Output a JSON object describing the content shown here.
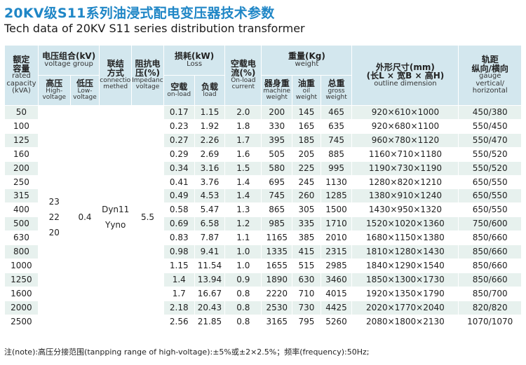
{
  "title": {
    "cn": "20KV级S11系列油浸式配电变压器技术参数",
    "en": "Tech data of 20KV S11 series distribution transformer"
  },
  "headers": {
    "capacity": {
      "cn1": "额定",
      "cn2": "容量",
      "en1": "rated",
      "en2": "capacity",
      "en3": "(kVA)"
    },
    "voltage_group": {
      "cn": "电压组合(kV)",
      "en": "voltage group"
    },
    "high_voltage": {
      "cn": "高压",
      "en1": "High-",
      "en2": "voltage"
    },
    "low_voltage": {
      "cn": "低压",
      "en1": "Low-",
      "en2": "voltage"
    },
    "connection": {
      "cn1": "联结",
      "cn2": "方式",
      "en1": "connection",
      "en2": "methed"
    },
    "impedance": {
      "cn1": "阻抗电",
      "cn2": "压(%)",
      "en1": "Impedance",
      "en2": "voltage"
    },
    "loss": {
      "cn": "损耗(kW)",
      "en": "Loss"
    },
    "no_load_loss": {
      "cn": "空载",
      "en": "on-load"
    },
    "load_loss": {
      "cn": "负载",
      "en": "load"
    },
    "no_load_current": {
      "cn1": "空载电",
      "cn2": "流(%)",
      "en1": "On-load",
      "en2": "current"
    },
    "weight": {
      "cn": "重量(Kg)",
      "en": "weight"
    },
    "machine_weight": {
      "cn": "器身重",
      "en1": "machine",
      "en2": "weight"
    },
    "oil_weight": {
      "cn": "油重",
      "en1": "oil",
      "en2": "weight"
    },
    "gross_weight": {
      "cn": "总重",
      "en1": "gross",
      "en2": "weight"
    },
    "dimension": {
      "cn1": "外形尺寸(mm)",
      "cn2": "(长L × 宽B × 高H)",
      "en": "outline dimension"
    },
    "gauge": {
      "cn1": "轨距",
      "cn2": "纵向/横向",
      "en1": "gauge",
      "en2": "vertical/",
      "en3": "horizontal"
    }
  },
  "merged": {
    "high_voltage": [
      "23",
      "22",
      "20"
    ],
    "low_voltage": "0.4",
    "connection": [
      "Dyn11",
      "Yyno"
    ],
    "impedance": "5.5"
  },
  "rows": [
    {
      "capacity": "50",
      "no_load": "0.17",
      "load": "1.15",
      "current": "2.0",
      "machine": "200",
      "oil": "145",
      "gross": "465",
      "dimension": "920×610×1000",
      "gauge": "450/380"
    },
    {
      "capacity": "100",
      "no_load": "0.23",
      "load": "1.92",
      "current": "1.8",
      "machine": "330",
      "oil": "165",
      "gross": "635",
      "dimension": "920×680×1100",
      "gauge": "550/450"
    },
    {
      "capacity": "125",
      "no_load": "0.27",
      "load": "2.26",
      "current": "1.7",
      "machine": "395",
      "oil": "185",
      "gross": "745",
      "dimension": "960×780×1120",
      "gauge": "550/470"
    },
    {
      "capacity": "160",
      "no_load": "0.29",
      "load": "2.69",
      "current": "1.6",
      "machine": "505",
      "oil": "205",
      "gross": "885",
      "dimension": "1160×710×1180",
      "gauge": "550/520"
    },
    {
      "capacity": "200",
      "no_load": "0.34",
      "load": "3.16",
      "current": "1.5",
      "machine": "580",
      "oil": "225",
      "gross": "995",
      "dimension": "1190×730×1190",
      "gauge": "550/520"
    },
    {
      "capacity": "250",
      "no_load": "0.41",
      "load": "3.76",
      "current": "1.4",
      "machine": "695",
      "oil": "245",
      "gross": "1130",
      "dimension": "1280×820×1210",
      "gauge": "650/550"
    },
    {
      "capacity": "315",
      "no_load": "0.49",
      "load": "4.53",
      "current": "1.4",
      "machine": "745",
      "oil": "260",
      "gross": "1285",
      "dimension": "1380×910×1240",
      "gauge": "650/550"
    },
    {
      "capacity": "400",
      "no_load": "0.58",
      "load": "5.47",
      "current": "1.3",
      "machine": "865",
      "oil": "305",
      "gross": "1500",
      "dimension": "1430×950×1320",
      "gauge": "650/550"
    },
    {
      "capacity": "500",
      "no_load": "0.69",
      "load": "6.58",
      "current": "1.2",
      "machine": "985",
      "oil": "335",
      "gross": "1710",
      "dimension": "1520×1020×1360",
      "gauge": "750/600"
    },
    {
      "capacity": "630",
      "no_load": "0.83",
      "load": "7.87",
      "current": "1.1",
      "machine": "1165",
      "oil": "385",
      "gross": "2010",
      "dimension": "1680×1150×1380",
      "gauge": "850/660"
    },
    {
      "capacity": "800",
      "no_load": "0.98",
      "load": "9.41",
      "current": "1.0",
      "machine": "1335",
      "oil": "415",
      "gross": "2315",
      "dimension": "1810×1280×1430",
      "gauge": "850/660"
    },
    {
      "capacity": "1000",
      "no_load": "1.15",
      "load": "11.54",
      "current": "1.0",
      "machine": "1655",
      "oil": "515",
      "gross": "2985",
      "dimension": "1840×1290×1540",
      "gauge": "850/660"
    },
    {
      "capacity": "1250",
      "no_load": "1.4",
      "load": "13.94",
      "current": "0.9",
      "machine": "1890",
      "oil": "630",
      "gross": "3460",
      "dimension": "1850×1300×1730",
      "gauge": "850/660"
    },
    {
      "capacity": "1600",
      "no_load": "1.7",
      "load": "16.67",
      "current": "0.8",
      "machine": "2220",
      "oil": "710",
      "gross": "4015",
      "dimension": "1920×1350×1790",
      "gauge": "850/700"
    },
    {
      "capacity": "2000",
      "no_load": "2.18",
      "load": "20.43",
      "current": "0.8",
      "machine": "2530",
      "oil": "730",
      "gross": "4425",
      "dimension": "2020×1770×2040",
      "gauge": "820/820"
    },
    {
      "capacity": "2500",
      "no_load": "2.56",
      "load": "21.85",
      "current": "0.8",
      "machine": "3165",
      "oil": "795",
      "gross": "5260",
      "dimension": "2080×1800×2130",
      "gauge": "1070/1070"
    }
  ],
  "note": "注(note):高压分接范围(tanpping range of high-voltage):±5%或±2×2.5%；频率(frequency):50Hz;"
}
